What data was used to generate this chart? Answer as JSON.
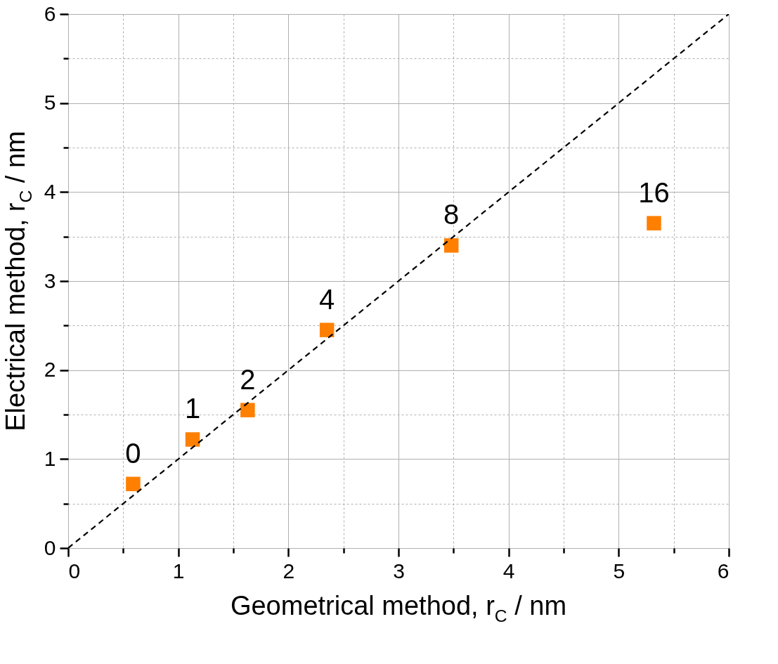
{
  "chart_data": {
    "type": "scatter",
    "xlabel": "Geometrical method, r$_{C}$ / nm",
    "ylabel": "Electrical method, r$_{C}$ / nm",
    "x": [
      0.59,
      1.13,
      1.63,
      2.35,
      3.48,
      5.32
    ],
    "series": [
      {
        "color": "#ff7f00",
        "marker": "square",
        "values": [
          0.72,
          1.22,
          1.55,
          2.45,
          3.4,
          3.65
        ]
      },
      {
        "type": "line",
        "color": "#000000",
        "line_style": "dashed",
        "marker": "none",
        "x": [
          0,
          6
        ],
        "values": [
          0,
          6
        ]
      }
    ],
    "annotations": [
      {
        "text": "0",
        "x": 0.59,
        "y": 0.72
      },
      {
        "text": "1",
        "x": 1.13,
        "y": 1.22
      },
      {
        "text": "2",
        "x": 1.63,
        "y": 1.55
      },
      {
        "text": "4",
        "x": 2.35,
        "y": 2.45
      },
      {
        "text": "8",
        "x": 3.48,
        "y": 3.4
      },
      {
        "text": "16",
        "x": 5.32,
        "y": 3.65
      }
    ],
    "xlim": [
      0,
      6
    ],
    "ylim": [
      0,
      6
    ],
    "xticks": [
      0,
      {
        "value": 0.5,
        "label": null
      },
      1,
      {
        "value": 1.5,
        "label": null
      },
      2,
      {
        "value": 2.5,
        "label": null
      },
      3,
      {
        "value": 3.5,
        "label": null
      },
      4,
      {
        "value": 4.5,
        "label": null
      },
      5,
      {
        "value": 5.5,
        "label": null
      },
      6
    ],
    "yticks": [
      0,
      {
        "value": 0.5,
        "label": null
      },
      1,
      {
        "value": 1.5,
        "label": null
      },
      2,
      {
        "value": 2.5,
        "label": null
      },
      3,
      {
        "value": 3.5,
        "label": null
      },
      4,
      {
        "value": 4.5,
        "label": null
      },
      5,
      {
        "value": 5.5,
        "label": null
      },
      6
    ],
    "grid": true,
    "legend": false
  }
}
